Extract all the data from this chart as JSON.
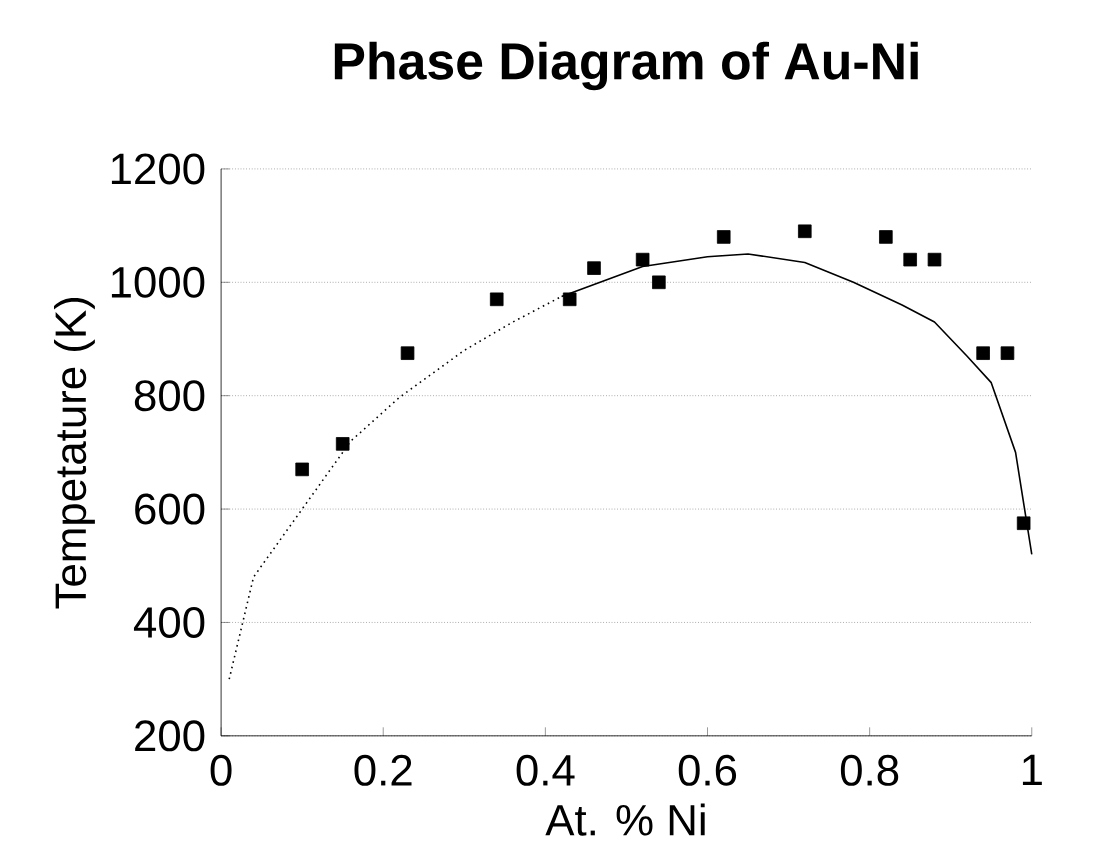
{
  "chart_data": {
    "type": "scatter",
    "title": "Phase Diagram of Au-Ni",
    "xlabel": "At. % Ni",
    "ylabel": "Tempetature (K)",
    "xlim": [
      0,
      1
    ],
    "ylim": [
      200,
      1200
    ],
    "xticks": [
      0,
      0.2,
      0.4,
      0.6,
      0.8,
      1
    ],
    "yticks": [
      200,
      400,
      600,
      800,
      1000,
      1200
    ],
    "grid": "y",
    "marker": "square",
    "series": [
      {
        "color": "#000000",
        "x": [
          0.1,
          0.15,
          0.23,
          0.34,
          0.43,
          0.46,
          0.52,
          0.54,
          0.62,
          0.72,
          0.82,
          0.85,
          0.88,
          0.94,
          0.97,
          0.99
        ],
        "values": [
          670,
          715,
          875,
          970,
          970,
          1025,
          1040,
          1000,
          1080,
          1090,
          1080,
          1040,
          1040,
          875,
          875,
          575
        ]
      },
      {
        "type": "line",
        "color": "#000000",
        "marker": "none",
        "line_style": "dotted",
        "x": [
          0.01,
          0.04,
          0.1,
          0.16,
          0.22,
          0.3,
          0.36,
          0.42
        ],
        "values": [
          300,
          480,
          600,
          720,
          797,
          880,
          930,
          975
        ]
      },
      {
        "type": "line",
        "color": "#000000",
        "marker": "none",
        "line_style": "solid",
        "x": [
          0.42,
          0.52,
          0.6,
          0.65,
          0.72,
          0.78,
          0.84,
          0.88,
          0.92,
          0.95,
          0.98,
          1.0
        ],
        "values": [
          975,
          1028,
          1045,
          1050,
          1035,
          1000,
          960,
          930,
          870,
          823,
          700,
          520
        ]
      }
    ]
  }
}
